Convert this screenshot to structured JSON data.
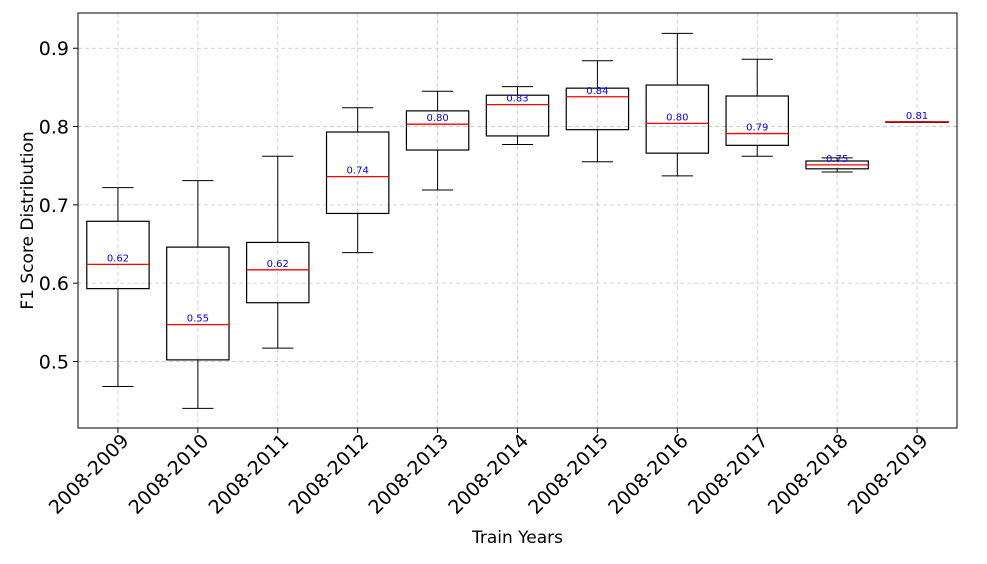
{
  "chart_data": {
    "type": "box",
    "title": "",
    "xlabel": "Train Years",
    "ylabel": "F1 Score Distribution",
    "ylim": [
      0.415,
      0.945
    ],
    "yticks": [
      0.5,
      0.6,
      0.7,
      0.8,
      0.9
    ],
    "ytick_labels": [
      "0.5",
      "0.6",
      "0.7",
      "0.8",
      "0.9"
    ],
    "grid": true,
    "categories": [
      "2008-2009",
      "2008-2010",
      "2008-2011",
      "2008-2012",
      "2008-2013",
      "2008-2014",
      "2008-2015",
      "2008-2016",
      "2008-2017",
      "2008-2018",
      "2008-2019"
    ],
    "boxes": [
      {
        "whislo": 0.468,
        "q1": 0.593,
        "med": 0.624,
        "q3": 0.679,
        "whishi": 0.722,
        "label": "0.62"
      },
      {
        "whislo": 0.44,
        "q1": 0.502,
        "med": 0.547,
        "q3": 0.646,
        "whishi": 0.731,
        "label": "0.55"
      },
      {
        "whislo": 0.517,
        "q1": 0.575,
        "med": 0.617,
        "q3": 0.652,
        "whishi": 0.762,
        "label": "0.62"
      },
      {
        "whislo": 0.639,
        "q1": 0.689,
        "med": 0.736,
        "q3": 0.793,
        "whishi": 0.824,
        "label": "0.74"
      },
      {
        "whislo": 0.719,
        "q1": 0.77,
        "med": 0.803,
        "q3": 0.82,
        "whishi": 0.845,
        "label": "0.80"
      },
      {
        "whislo": 0.777,
        "q1": 0.788,
        "med": 0.828,
        "q3": 0.84,
        "whishi": 0.851,
        "label": "0.83"
      },
      {
        "whislo": 0.755,
        "q1": 0.796,
        "med": 0.838,
        "q3": 0.849,
        "whishi": 0.884,
        "label": "0.84"
      },
      {
        "whislo": 0.737,
        "q1": 0.766,
        "med": 0.804,
        "q3": 0.853,
        "whishi": 0.919,
        "label": "0.80"
      },
      {
        "whislo": 0.762,
        "q1": 0.776,
        "med": 0.791,
        "q3": 0.839,
        "whishi": 0.886,
        "label": "0.79"
      },
      {
        "whislo": 0.742,
        "q1": 0.746,
        "med": 0.751,
        "q3": 0.756,
        "whishi": 0.76,
        "label": "0.75"
      },
      {
        "whislo": 0.806,
        "q1": 0.806,
        "med": 0.806,
        "q3": 0.806,
        "whishi": 0.806,
        "label": "0.81"
      }
    ],
    "colors": {
      "box": "#000000",
      "median": "#ff0000",
      "median_label": "#0000ff",
      "grid": "#c8c8c8"
    }
  }
}
